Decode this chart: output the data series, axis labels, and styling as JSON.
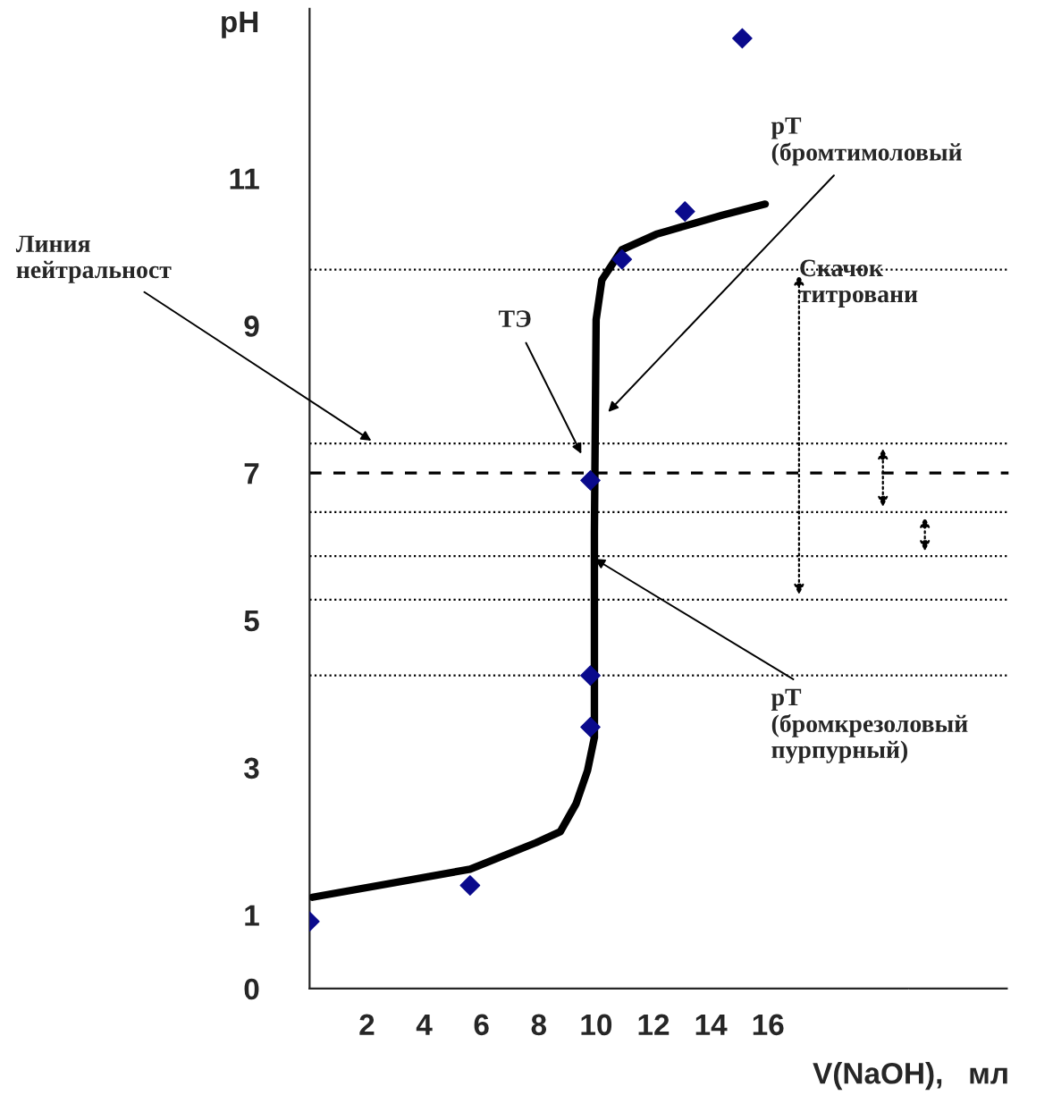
{
  "chart_data": {
    "type": "scatter",
    "xlabel": "V(NaOH),   мл",
    "ylabel": "pH",
    "xlim": [
      0,
      24.4
    ],
    "ylim": [
      0,
      13.3
    ],
    "xticks": [
      2,
      4,
      6,
      8,
      10,
      12,
      14,
      16
    ],
    "yticks": [
      0,
      1,
      3,
      5,
      7,
      9,
      11
    ],
    "grid": false,
    "series": [
      {
        "type": "line",
        "color": "#000000",
        "marker": "none",
        "line_style": "solid",
        "x": [
          0.1,
          5.6,
          7.9,
          8.75,
          9.3,
          9.7,
          9.94,
          9.94,
          10.0,
          10.2,
          10.9,
          12.1,
          14.4,
          15.9
        ],
        "values": [
          1.24,
          1.62,
          1.98,
          2.13,
          2.51,
          2.96,
          3.41,
          6.19,
          9.08,
          9.62,
          10.03,
          10.24,
          10.5,
          10.65
        ]
      },
      {
        "color": "#0a0a8c",
        "marker": "diamond",
        "x": [
          0,
          5.6,
          9.8,
          9.8,
          9.8,
          10.9,
          13.1,
          15.1
        ],
        "values": [
          0.91,
          1.4,
          3.55,
          4.25,
          6.9,
          9.9,
          10.55,
          12.9
        ]
      }
    ],
    "ref_lines": [
      {
        "axis": "y",
        "value": 9.76,
        "line_style": "dotted",
        "color": "#000000"
      },
      {
        "axis": "y",
        "value": 7.4,
        "line_style": "dotted",
        "color": "#000000"
      },
      {
        "axis": "y",
        "value": 7,
        "line_style": "dashed",
        "color": "#000000"
      },
      {
        "axis": "y",
        "value": 6.47,
        "line_style": "dotted",
        "color": "#000000"
      },
      {
        "axis": "y",
        "value": 5.87,
        "line_style": "dotted",
        "color": "#000000"
      },
      {
        "axis": "y",
        "value": 5.28,
        "line_style": "dotted",
        "color": "#000000"
      },
      {
        "axis": "y",
        "value": 4.25,
        "line_style": "dotted",
        "color": "#000000"
      }
    ],
    "annotations": [
      {
        "text": "Линия\nнейтральност",
        "x": 2.3,
        "y": 7.4
      },
      {
        "text": "ТЭ",
        "x": 9.56,
        "y": 7.2
      },
      {
        "text": "pT\n(бромтимоловый",
        "x": 10.3,
        "y": 7.78
      },
      {
        "text": "pT\n(бромкрезоловый\nпурпурный)",
        "x": 9.8,
        "y": 5.87
      },
      "Скачок\nтитровани"
    ]
  }
}
